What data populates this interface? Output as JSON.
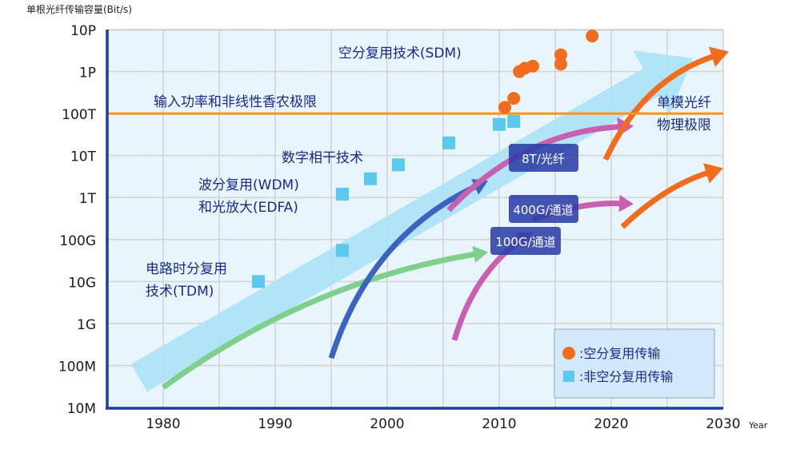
{
  "chart_data": {
    "type": "scatter",
    "title": "",
    "ylabel": "单根光纤传输容量(Bit/s)",
    "xlabel": "Year",
    "yscale": "log",
    "ylim": [
      10000000.0,
      1e+16
    ],
    "xlim": [
      1975,
      2030
    ],
    "grid": true,
    "x_ticks": [
      1980,
      1990,
      2000,
      2010,
      2020,
      2030
    ],
    "x_tick_labels": [
      "1980",
      "1990",
      "2000",
      "2010",
      "2020",
      "2030"
    ],
    "y_ticks": [
      10000000.0,
      100000000.0,
      1000000000.0,
      10000000000.0,
      100000000000.0,
      1000000000000.0,
      10000000000000.0,
      100000000000000.0,
      1000000000000000.0,
      1e+16
    ],
    "y_tick_labels": [
      "10M",
      "100M",
      "1G",
      "10G",
      "100G",
      "1T",
      "10T",
      "100T",
      "1P",
      "10P"
    ],
    "reference_line": {
      "y": 100000000000000.0,
      "label": "输入功率和非线性香农极限",
      "color": "#f7941d"
    },
    "series": [
      {
        "name": "空分复用传输",
        "marker": "circle",
        "color": "#f26c1d",
        "points": [
          [
            2010.5,
            140000000000000.0
          ],
          [
            2011.3,
            230000000000000.0
          ],
          [
            2011.8,
            1000000000000000.0
          ],
          [
            2012.3,
            1200000000000000.0
          ],
          [
            2013.0,
            1350000000000000.0
          ],
          [
            2015.5,
            1500000000000000.0
          ],
          [
            2015.5,
            2500000000000000.0
          ],
          [
            2018.3,
            7000000000000000.0
          ]
        ]
      },
      {
        "name": "非空分复用传输",
        "marker": "square",
        "color": "#5bc8ee",
        "points": [
          [
            1988.5,
            10000000000.0
          ],
          [
            1996.0,
            55000000000.0
          ],
          [
            1996.0,
            1200000000000.0
          ],
          [
            1998.5,
            2800000000000.0
          ],
          [
            2001.0,
            6000000000000.0
          ],
          [
            2005.5,
            20000000000000.0
          ],
          [
            2010.0,
            55000000000000.0
          ],
          [
            2011.3,
            65000000000000.0
          ]
        ]
      }
    ],
    "trend_arrows": [
      {
        "name": "overall-trend",
        "color": "#aee3f5",
        "from": [
          1975,
          30000000.0
        ],
        "to": [
          2028,
          5000000000000000.0
        ]
      },
      {
        "name": "tdm-arrow",
        "color": "#7fd08d",
        "from": [
          1980,
          30000000.0
        ],
        "to": [
          2009,
          50000000000.0
        ]
      },
      {
        "name": "wdm-arrow",
        "color": "#3a64bd",
        "from": [
          1995,
          150000000.0
        ],
        "to": [
          2009,
          2500000000000.0
        ]
      },
      {
        "name": "8t-fiber-arrow",
        "color": "#c95fb1",
        "from": [
          2005.5,
          500000000000.0
        ],
        "to": [
          2022,
          50000000000000.0
        ]
      },
      {
        "name": "100g-channel-arrow",
        "color": "#c95fb1",
        "from": [
          2006,
          400000000.0
        ],
        "to": [
          2013,
          150000000000.0
        ]
      },
      {
        "name": "400g-channel-arrow",
        "color": "#c95fb1",
        "from": [
          2013,
          300000000000.0
        ],
        "to": [
          2022,
          700000000000.0
        ]
      },
      {
        "name": "sdm-arrow-upper",
        "color": "#f26c1d",
        "from": [
          2019.5,
          8000000000000.0
        ],
        "to": [
          2030.5,
          3000000000000000.0
        ]
      },
      {
        "name": "sdm-arrow-lower",
        "color": "#f26c1d",
        "from": [
          2021,
          200000000000.0
        ],
        "to": [
          2030,
          5000000000000.0
        ]
      }
    ],
    "annotations": [
      {
        "id": "sdm",
        "text": "空分复用技术(SDM)"
      },
      {
        "id": "shannon",
        "text": "输入功率和非线性香农极限"
      },
      {
        "id": "smf-limit-1",
        "text": "单模光纤"
      },
      {
        "id": "smf-limit-2",
        "text": "物理极限"
      },
      {
        "id": "coherent",
        "text": "数字相干技术"
      },
      {
        "id": "wdm-1",
        "text": "波分复用(WDM)"
      },
      {
        "id": "wdm-2",
        "text": "和光放大(EDFA)"
      },
      {
        "id": "tdm-1",
        "text": "电路时分复用"
      },
      {
        "id": "tdm-2",
        "text": "技术(TDM)"
      }
    ],
    "badges": [
      {
        "id": "8t",
        "text": "8T/光纤"
      },
      {
        "id": "400g",
        "text": "400G/通道"
      },
      {
        "id": "100g",
        "text": "100G/通道"
      }
    ],
    "legend": {
      "position": "bottom-right",
      "items": [
        {
          "marker": "circle",
          "color": "#f26c1d",
          "label": ":空分复用传输"
        },
        {
          "marker": "square",
          "color": "#5bc8ee",
          "label": ":非空分复用传输"
        }
      ]
    }
  }
}
